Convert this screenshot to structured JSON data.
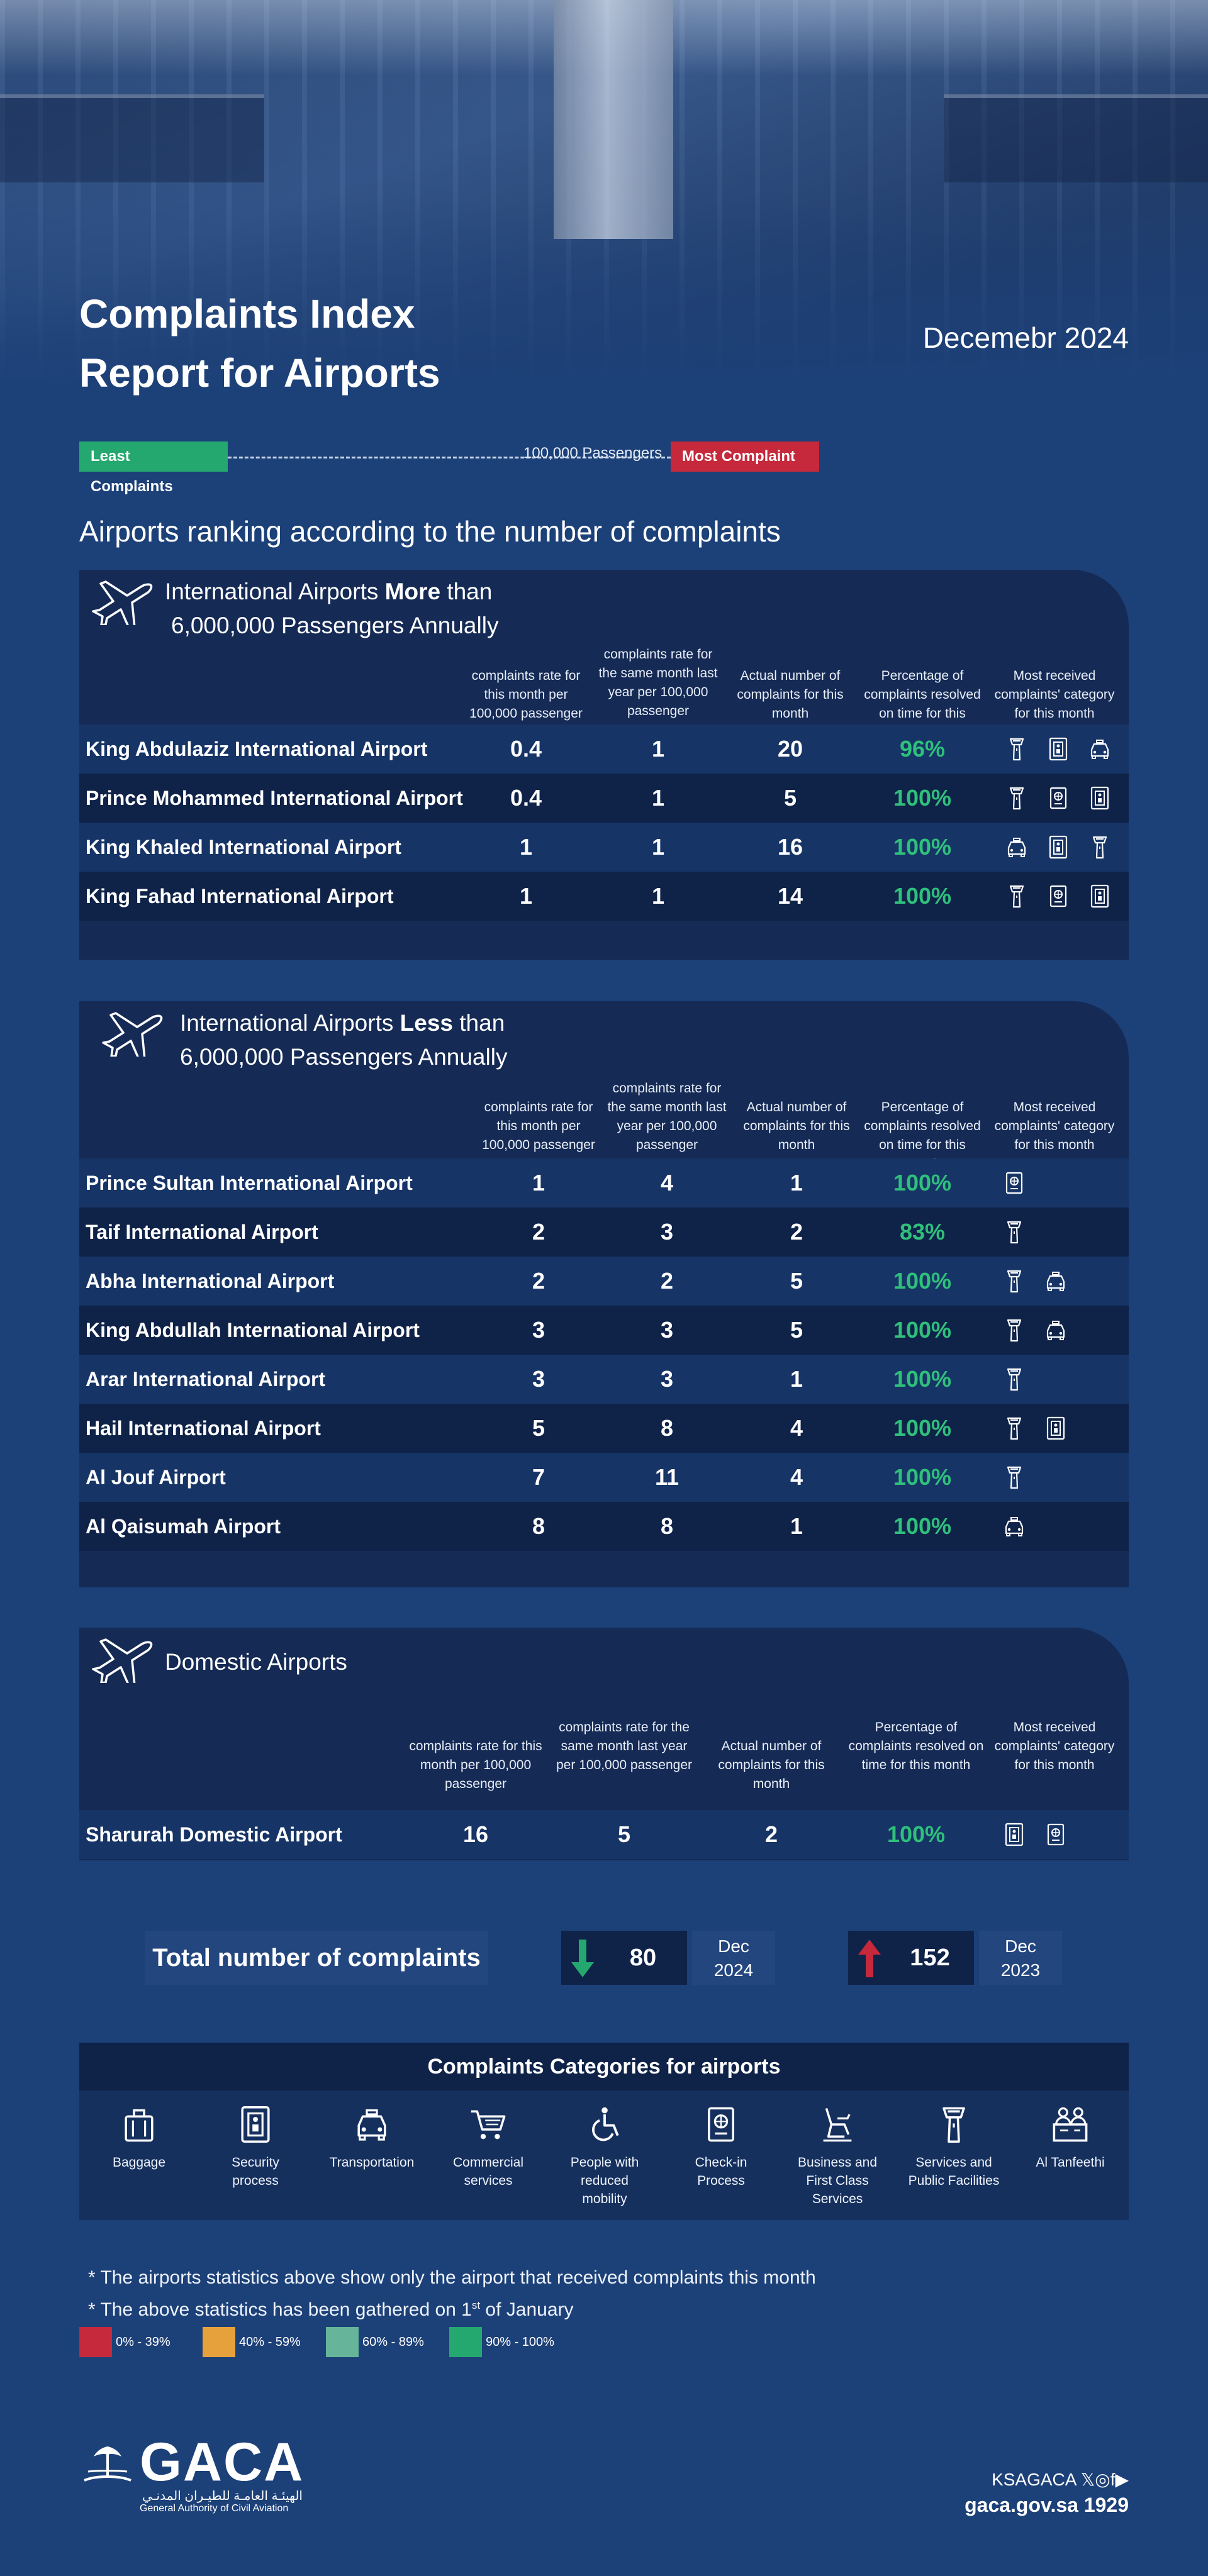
{
  "header": {
    "title_line1": "Complaints Index",
    "title_line2": "Report for Airports",
    "month": "Decemebr 2024"
  },
  "scale": {
    "least": "Least Complaints",
    "middle": "100,000 Passengers",
    "most": "Most Complaint"
  },
  "section_title": "Airports ranking according to the number of complaints",
  "col_heads": {
    "rate": "complaints rate for this month per 100,000 passenger",
    "rate_last": "complaints rate for the same month last year per 100,000 passenger",
    "actual": "Actual number of complaints for this month",
    "resolved": "Percentage of complaints resolved on time for this month",
    "category": "Most received complaints' category for this month"
  },
  "groups": {
    "more": {
      "title_a": "International Airports ",
      "title_bold": "More",
      "title_b": " than",
      "title_line2": "6,000,000 Passengers Annually",
      "rows": [
        {
          "name": "King Abdulaziz International Airport",
          "rate": "0.4",
          "rate_last": "1",
          "actual": "20",
          "resolved": "96%"
        },
        {
          "name": "Prince Mohammed International Airport",
          "rate": "0.4",
          "rate_last": "1",
          "actual": "5",
          "resolved": "100%"
        },
        {
          "name": "King Khaled International Airport",
          "rate": "1",
          "rate_last": "1",
          "actual": "16",
          "resolved": "100%"
        },
        {
          "name": "King Fahad International Airport",
          "rate": "1",
          "rate_last": "1",
          "actual": "14",
          "resolved": "100%"
        }
      ]
    },
    "less": {
      "title_a": "International Airports ",
      "title_bold": "Less",
      "title_b": " than",
      "title_line2": "6,000,000 Passengers Annually",
      "rows": [
        {
          "name": "Prince Sultan International Airport",
          "rate": "1",
          "rate_last": "4",
          "actual": "1",
          "resolved": "100%"
        },
        {
          "name": "Taif International Airport",
          "rate": "2",
          "rate_last": "3",
          "actual": "2",
          "resolved": "83%"
        },
        {
          "name": "Abha International Airport",
          "rate": "2",
          "rate_last": "2",
          "actual": "5",
          "resolved": "100%"
        },
        {
          "name": "King Abdullah International Airport",
          "rate": "3",
          "rate_last": "3",
          "actual": "5",
          "resolved": "100%"
        },
        {
          "name": "Arar International Airport",
          "rate": "3",
          "rate_last": "3",
          "actual": "1",
          "resolved": "100%"
        },
        {
          "name": "Hail International Airport",
          "rate": "5",
          "rate_last": "8",
          "actual": "4",
          "resolved": "100%"
        },
        {
          "name": "Al Jouf Airport",
          "rate": "7",
          "rate_last": "11",
          "actual": "4",
          "resolved": "100%"
        },
        {
          "name": "Al Qaisumah Airport",
          "rate": "8",
          "rate_last": "8",
          "actual": "1",
          "resolved": "100%"
        }
      ]
    },
    "domestic": {
      "title": "Domestic Airports",
      "rows": [
        {
          "name": "Sharurah Domestic Airport",
          "rate": "16",
          "rate_last": "5",
          "actual": "2",
          "resolved": "100%"
        }
      ]
    }
  },
  "totals": {
    "label": "Total number of complaints",
    "current_value": "80",
    "current_month": "Dec",
    "current_year": "2024",
    "previous_value": "152",
    "previous_month": "Dec",
    "previous_year": "2023",
    "down_color": "#25a86f",
    "up_color": "#c5293b"
  },
  "categories": {
    "title": "Complaints Categories for airports",
    "items": [
      {
        "label": "Baggage",
        "icon": "baggage-icon"
      },
      {
        "label": "Security process",
        "icon": "security-gate-icon"
      },
      {
        "label": "Transportation",
        "icon": "taxi-icon"
      },
      {
        "label": "Commercial services",
        "icon": "cart-icon"
      },
      {
        "label": "People with reduced mobility",
        "icon": "wheelchair-icon"
      },
      {
        "label": "Check-in Process",
        "icon": "passport-icon"
      },
      {
        "label": "Business and First Class Services",
        "icon": "lounge-seat-icon"
      },
      {
        "label": "Services and Public Facilities",
        "icon": "control-tower-icon"
      },
      {
        "label": "Al Tanfeethi",
        "icon": "staff-counter-icon"
      }
    ]
  },
  "notes": {
    "line1": "* The airports statistics above show only the airport that received complaints this month",
    "line2_a": "* The above statistics has been gathered on  1",
    "line2_sup": "st",
    "line2_b": " of January"
  },
  "color_legend": [
    {
      "label": "0% - 39%",
      "color": "#c5293b"
    },
    {
      "label": "40% - 59%",
      "color": "#e7a13c"
    },
    {
      "label": "60% - 89%",
      "color": "#66b59a"
    },
    {
      "label": "90% - 100%",
      "color": "#25a86f"
    }
  ],
  "footer": {
    "logo_word": "GACA",
    "logo_arabic": "الهيئـة العامـة للطيـران المدنـي",
    "logo_english": "General Authority of Civil Aviation",
    "social_handle": "KSAGACA",
    "social_icons": "𝕏◎f▶",
    "site": "gaca.gov.sa",
    "phone": "1929"
  }
}
